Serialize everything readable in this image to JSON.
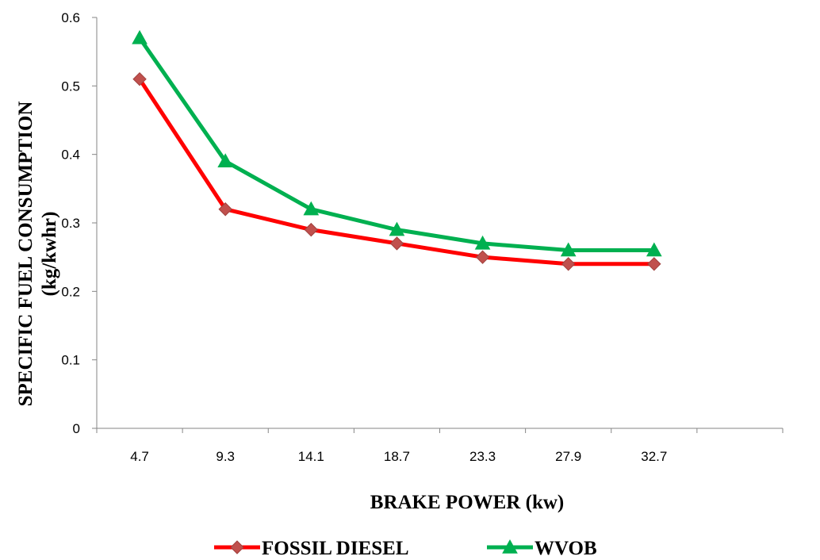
{
  "chart_data": {
    "type": "line",
    "title": "",
    "xlabel": "BRAKE POWER (kw)",
    "ylabel": [
      "SPECIFIC FUEL CONSUMPTION",
      "(kg/kwhr)"
    ],
    "categories": [
      "4.7",
      "9.3",
      "14.1",
      "18.7",
      "23.3",
      "27.9",
      "32.7"
    ],
    "ylim": [
      0,
      0.6
    ],
    "yticks": [
      "0",
      "0.1",
      "0.2",
      "0.3",
      "0.4",
      "0.5",
      "0.6"
    ],
    "grid": false,
    "legend_position": "bottom",
    "series": [
      {
        "name": "FOSSIL DIESEL",
        "values": [
          0.51,
          0.32,
          0.29,
          0.27,
          0.25,
          0.24,
          0.24
        ],
        "color": "#ff0000",
        "marker": "diamond",
        "marker_fill": "#c0504d"
      },
      {
        "name": "WVOB",
        "values": [
          0.57,
          0.39,
          0.32,
          0.29,
          0.27,
          0.26,
          0.26
        ],
        "color": "#00b050",
        "marker": "triangle",
        "marker_fill": "#00b050"
      }
    ]
  }
}
